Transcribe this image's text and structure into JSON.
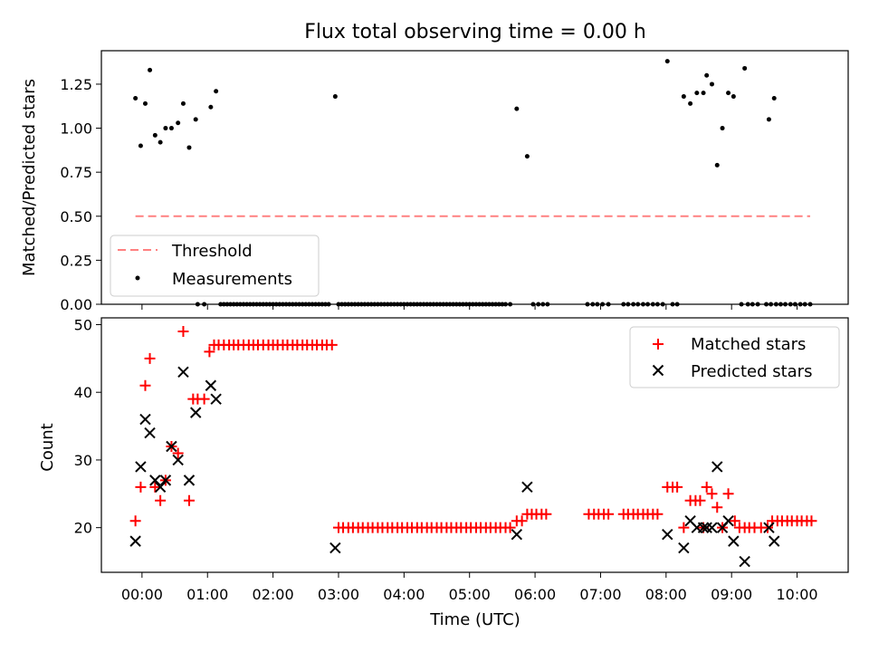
{
  "title": "Flux total observing time = 0.00 h",
  "chart_data": [
    {
      "type": "scatter",
      "panel": "top",
      "ylabel": "Matched/Predicted stars",
      "ylim": [
        0,
        1.44
      ],
      "yticks": [
        0.0,
        0.25,
        0.5,
        0.75,
        1.0,
        1.25
      ],
      "ytick_labels": [
        "0.00",
        "0.25",
        "0.50",
        "0.75",
        "1.00",
        "1.25"
      ],
      "threshold": {
        "name": "Threshold",
        "y": 0.5,
        "x_start": -0.1,
        "x_end": 10.2,
        "color": "#ff8080"
      },
      "series": [
        {
          "name": "Measurements",
          "color": "#000000",
          "points": [
            [
              -0.1,
              1.17
            ],
            [
              -0.02,
              0.9
            ],
            [
              0.05,
              1.14
            ],
            [
              0.12,
              1.33
            ],
            [
              0.2,
              0.96
            ],
            [
              0.28,
              0.92
            ],
            [
              0.36,
              1.0
            ],
            [
              0.45,
              1.0
            ],
            [
              0.55,
              1.03
            ],
            [
              0.63,
              1.14
            ],
            [
              0.72,
              0.89
            ],
            [
              0.82,
              1.05
            ],
            [
              1.05,
              1.12
            ],
            [
              1.13,
              1.21
            ],
            [
              2.95,
              1.18
            ],
            [
              5.72,
              1.11
            ],
            [
              5.88,
              0.84
            ],
            [
              8.02,
              1.38
            ],
            [
              8.27,
              1.18
            ],
            [
              8.37,
              1.14
            ],
            [
              8.47,
              1.2
            ],
            [
              8.57,
              1.2
            ],
            [
              8.62,
              1.3
            ],
            [
              8.7,
              1.25
            ],
            [
              8.78,
              0.79
            ],
            [
              8.86,
              1.0
            ],
            [
              8.95,
              1.2
            ],
            [
              9.03,
              1.18
            ],
            [
              9.2,
              1.34
            ],
            [
              9.57,
              1.05
            ],
            [
              9.65,
              1.17
            ]
          ],
          "zeros": [
            0.85,
            0.95,
            1.2,
            1.25,
            1.3,
            1.35,
            1.4,
            1.45,
            1.5,
            1.55,
            1.6,
            1.65,
            1.7,
            1.75,
            1.8,
            1.85,
            1.9,
            1.95,
            2.0,
            2.05,
            2.1,
            2.15,
            2.2,
            2.25,
            2.3,
            2.35,
            2.4,
            2.45,
            2.5,
            2.55,
            2.6,
            2.65,
            2.7,
            2.75,
            2.8,
            2.85,
            3.0,
            3.05,
            3.1,
            3.15,
            3.2,
            3.25,
            3.3,
            3.35,
            3.4,
            3.45,
            3.5,
            3.55,
            3.6,
            3.65,
            3.7,
            3.75,
            3.8,
            3.85,
            3.9,
            3.95,
            4.0,
            4.05,
            4.1,
            4.15,
            4.2,
            4.25,
            4.3,
            4.35,
            4.4,
            4.45,
            4.5,
            4.55,
            4.6,
            4.65,
            4.7,
            4.75,
            4.8,
            4.85,
            4.9,
            4.95,
            5.0,
            5.05,
            5.1,
            5.15,
            5.2,
            5.25,
            5.3,
            5.35,
            5.4,
            5.45,
            5.5,
            5.55,
            5.62,
            5.97,
            6.05,
            6.12,
            6.19,
            6.8,
            6.88,
            6.95,
            7.03,
            7.12,
            7.35,
            7.42,
            7.5,
            7.57,
            7.65,
            7.72,
            7.8,
            7.87,
            7.95,
            8.1,
            8.17,
            9.15,
            9.25,
            9.32,
            9.4,
            9.53,
            9.6,
            9.68,
            9.75,
            9.82,
            9.9,
            9.97,
            10.05,
            10.12,
            10.2
          ]
        }
      ],
      "legend": {
        "position": "lower-left",
        "entries": [
          "Threshold",
          "Measurements"
        ]
      }
    },
    {
      "type": "scatter",
      "panel": "bottom",
      "xlabel": "Time (UTC)",
      "ylabel": "Count",
      "xlim": [
        -0.62,
        10.78
      ],
      "ylim": [
        13.4,
        51.0
      ],
      "xticks": [
        0,
        1,
        2,
        3,
        4,
        5,
        6,
        7,
        8,
        9,
        10
      ],
      "xtick_labels": [
        "00:00",
        "01:00",
        "02:00",
        "03:00",
        "04:00",
        "05:00",
        "06:00",
        "07:00",
        "08:00",
        "09:00",
        "10:00"
      ],
      "yticks": [
        20,
        30,
        40,
        50
      ],
      "ytick_labels": [
        "20",
        "30",
        "40",
        "50"
      ],
      "series": [
        {
          "name": "Matched stars",
          "color": "#ff0000",
          "marker": "plus",
          "points": [
            [
              -0.1,
              21
            ],
            [
              -0.02,
              26
            ],
            [
              0.05,
              41
            ],
            [
              0.12,
              45
            ],
            [
              0.2,
              26
            ],
            [
              0.28,
              24
            ],
            [
              0.36,
              27
            ],
            [
              0.45,
              32
            ],
            [
              0.55,
              31
            ],
            [
              0.63,
              49
            ],
            [
              0.72,
              24
            ],
            [
              0.78,
              39
            ],
            [
              0.85,
              39
            ],
            [
              0.95,
              39
            ],
            [
              1.03,
              46
            ],
            [
              1.1,
              47
            ],
            [
              1.17,
              47
            ],
            [
              1.25,
              47
            ],
            [
              1.33,
              47
            ],
            [
              1.4,
              47
            ],
            [
              1.47,
              47
            ],
            [
              1.55,
              47
            ],
            [
              1.63,
              47
            ],
            [
              1.7,
              47
            ],
            [
              1.77,
              47
            ],
            [
              1.85,
              47
            ],
            [
              1.93,
              47
            ],
            [
              2.0,
              47
            ],
            [
              2.07,
              47
            ],
            [
              2.15,
              47
            ],
            [
              2.22,
              47
            ],
            [
              2.3,
              47
            ],
            [
              2.37,
              47
            ],
            [
              2.45,
              47
            ],
            [
              2.52,
              47
            ],
            [
              2.6,
              47
            ],
            [
              2.67,
              47
            ],
            [
              2.75,
              47
            ],
            [
              2.82,
              47
            ],
            [
              2.9,
              47
            ],
            [
              3.0,
              20
            ],
            [
              3.07,
              20
            ],
            [
              3.15,
              20
            ],
            [
              3.22,
              20
            ],
            [
              3.3,
              20
            ],
            [
              3.37,
              20
            ],
            [
              3.45,
              20
            ],
            [
              3.52,
              20
            ],
            [
              3.6,
              20
            ],
            [
              3.67,
              20
            ],
            [
              3.75,
              20
            ],
            [
              3.82,
              20
            ],
            [
              3.9,
              20
            ],
            [
              3.97,
              20
            ],
            [
              4.05,
              20
            ],
            [
              4.12,
              20
            ],
            [
              4.2,
              20
            ],
            [
              4.27,
              20
            ],
            [
              4.35,
              20
            ],
            [
              4.42,
              20
            ],
            [
              4.5,
              20
            ],
            [
              4.57,
              20
            ],
            [
              4.65,
              20
            ],
            [
              4.72,
              20
            ],
            [
              4.8,
              20
            ],
            [
              4.87,
              20
            ],
            [
              4.95,
              20
            ],
            [
              5.02,
              20
            ],
            [
              5.1,
              20
            ],
            [
              5.17,
              20
            ],
            [
              5.25,
              20
            ],
            [
              5.32,
              20
            ],
            [
              5.4,
              20
            ],
            [
              5.47,
              20
            ],
            [
              5.55,
              20
            ],
            [
              5.62,
              20
            ],
            [
              5.72,
              21
            ],
            [
              5.8,
              21
            ],
            [
              5.88,
              22
            ],
            [
              5.95,
              22
            ],
            [
              6.02,
              22
            ],
            [
              6.1,
              22
            ],
            [
              6.17,
              22
            ],
            [
              6.82,
              22
            ],
            [
              6.9,
              22
            ],
            [
              6.97,
              22
            ],
            [
              7.05,
              22
            ],
            [
              7.12,
              22
            ],
            [
              7.35,
              22
            ],
            [
              7.42,
              22
            ],
            [
              7.5,
              22
            ],
            [
              7.57,
              22
            ],
            [
              7.65,
              22
            ],
            [
              7.72,
              22
            ],
            [
              7.8,
              22
            ],
            [
              7.87,
              22
            ],
            [
              8.02,
              26
            ],
            [
              8.1,
              26
            ],
            [
              8.17,
              26
            ],
            [
              8.27,
              20
            ],
            [
              8.37,
              24
            ],
            [
              8.45,
              24
            ],
            [
              8.52,
              24
            ],
            [
              8.57,
              20
            ],
            [
              8.62,
              26
            ],
            [
              8.7,
              25
            ],
            [
              8.78,
              23
            ],
            [
              8.86,
              20
            ],
            [
              8.95,
              25
            ],
            [
              9.05,
              21
            ],
            [
              9.12,
              20
            ],
            [
              9.2,
              20
            ],
            [
              9.27,
              20
            ],
            [
              9.35,
              20
            ],
            [
              9.45,
              20
            ],
            [
              9.55,
              20
            ],
            [
              9.62,
              21
            ],
            [
              9.7,
              21
            ],
            [
              9.77,
              21
            ],
            [
              9.85,
              21
            ],
            [
              9.92,
              21
            ],
            [
              10.0,
              21
            ],
            [
              10.07,
              21
            ],
            [
              10.15,
              21
            ],
            [
              10.22,
              21
            ]
          ]
        },
        {
          "name": "Predicted stars",
          "color": "#000000",
          "marker": "x",
          "points": [
            [
              -0.1,
              18
            ],
            [
              -0.02,
              29
            ],
            [
              0.05,
              36
            ],
            [
              0.12,
              34
            ],
            [
              0.2,
              27
            ],
            [
              0.28,
              26
            ],
            [
              0.36,
              27
            ],
            [
              0.45,
              32
            ],
            [
              0.55,
              30
            ],
            [
              0.63,
              43
            ],
            [
              0.72,
              27
            ],
            [
              0.82,
              37
            ],
            [
              1.05,
              41
            ],
            [
              1.13,
              39
            ],
            [
              2.95,
              17
            ],
            [
              5.72,
              19
            ],
            [
              5.88,
              26
            ],
            [
              8.02,
              19
            ],
            [
              8.27,
              17
            ],
            [
              8.37,
              21
            ],
            [
              8.47,
              20
            ],
            [
              8.57,
              20
            ],
            [
              8.62,
              20
            ],
            [
              8.7,
              20
            ],
            [
              8.78,
              29
            ],
            [
              8.86,
              20
            ],
            [
              8.95,
              21
            ],
            [
              9.03,
              18
            ],
            [
              9.2,
              15
            ],
            [
              9.57,
              20
            ],
            [
              9.65,
              18
            ]
          ]
        }
      ],
      "legend": {
        "position": "upper-right",
        "entries": [
          "Matched stars",
          "Predicted stars"
        ]
      }
    }
  ]
}
